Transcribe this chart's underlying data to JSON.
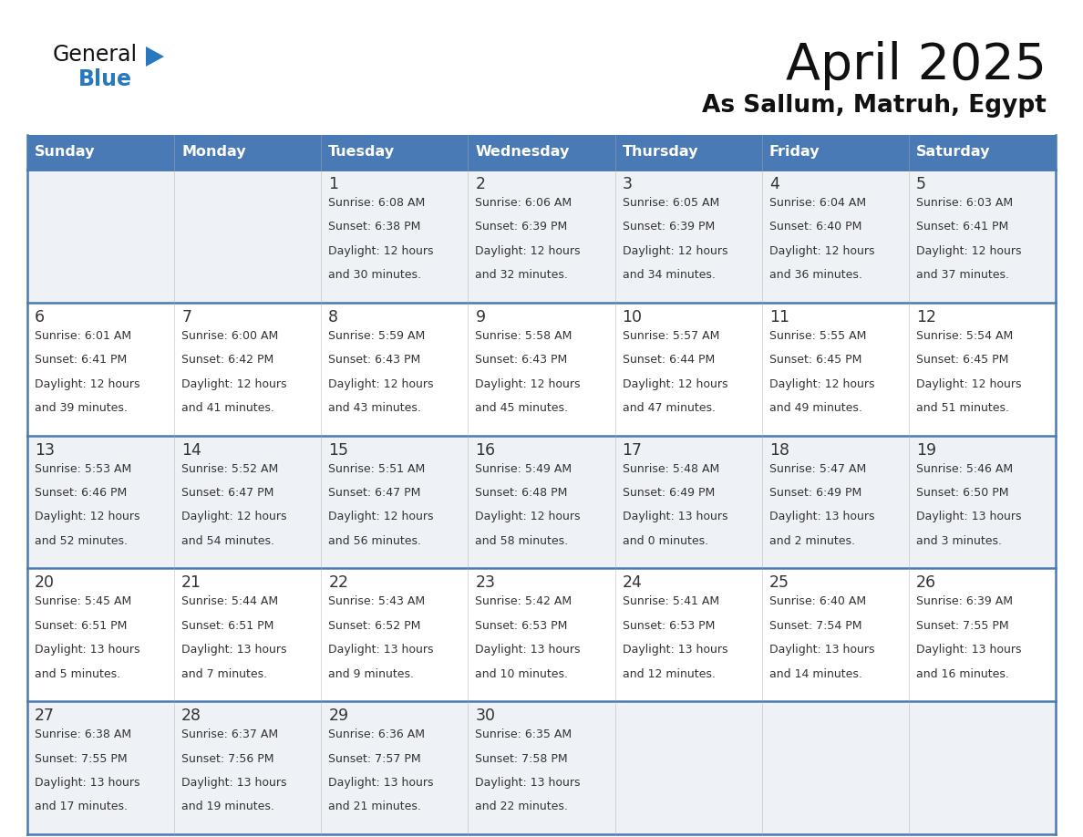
{
  "title": "April 2025",
  "subtitle": "As Sallum, Matruh, Egypt",
  "days_of_week": [
    "Sunday",
    "Monday",
    "Tuesday",
    "Wednesday",
    "Thursday",
    "Friday",
    "Saturday"
  ],
  "header_bg": "#4a7ab5",
  "header_text_color": "#ffffff",
  "cell_bg_odd": "#eef2f7",
  "cell_bg_even": "#ffffff",
  "cell_border_color": "#4a7ab5",
  "text_color": "#333333",
  "title_color": "#111111",
  "logo_general_color": "#111111",
  "logo_blue_color": "#2878c0",
  "logo_triangle_color": "#2878c0",
  "weeks": [
    [
      {
        "day": null,
        "info": null
      },
      {
        "day": null,
        "info": null
      },
      {
        "day": 1,
        "info": "Sunrise: 6:08 AM\nSunset: 6:38 PM\nDaylight: 12 hours\nand 30 minutes."
      },
      {
        "day": 2,
        "info": "Sunrise: 6:06 AM\nSunset: 6:39 PM\nDaylight: 12 hours\nand 32 minutes."
      },
      {
        "day": 3,
        "info": "Sunrise: 6:05 AM\nSunset: 6:39 PM\nDaylight: 12 hours\nand 34 minutes."
      },
      {
        "day": 4,
        "info": "Sunrise: 6:04 AM\nSunset: 6:40 PM\nDaylight: 12 hours\nand 36 minutes."
      },
      {
        "day": 5,
        "info": "Sunrise: 6:03 AM\nSunset: 6:41 PM\nDaylight: 12 hours\nand 37 minutes."
      }
    ],
    [
      {
        "day": 6,
        "info": "Sunrise: 6:01 AM\nSunset: 6:41 PM\nDaylight: 12 hours\nand 39 minutes."
      },
      {
        "day": 7,
        "info": "Sunrise: 6:00 AM\nSunset: 6:42 PM\nDaylight: 12 hours\nand 41 minutes."
      },
      {
        "day": 8,
        "info": "Sunrise: 5:59 AM\nSunset: 6:43 PM\nDaylight: 12 hours\nand 43 minutes."
      },
      {
        "day": 9,
        "info": "Sunrise: 5:58 AM\nSunset: 6:43 PM\nDaylight: 12 hours\nand 45 minutes."
      },
      {
        "day": 10,
        "info": "Sunrise: 5:57 AM\nSunset: 6:44 PM\nDaylight: 12 hours\nand 47 minutes."
      },
      {
        "day": 11,
        "info": "Sunrise: 5:55 AM\nSunset: 6:45 PM\nDaylight: 12 hours\nand 49 minutes."
      },
      {
        "day": 12,
        "info": "Sunrise: 5:54 AM\nSunset: 6:45 PM\nDaylight: 12 hours\nand 51 minutes."
      }
    ],
    [
      {
        "day": 13,
        "info": "Sunrise: 5:53 AM\nSunset: 6:46 PM\nDaylight: 12 hours\nand 52 minutes."
      },
      {
        "day": 14,
        "info": "Sunrise: 5:52 AM\nSunset: 6:47 PM\nDaylight: 12 hours\nand 54 minutes."
      },
      {
        "day": 15,
        "info": "Sunrise: 5:51 AM\nSunset: 6:47 PM\nDaylight: 12 hours\nand 56 minutes."
      },
      {
        "day": 16,
        "info": "Sunrise: 5:49 AM\nSunset: 6:48 PM\nDaylight: 12 hours\nand 58 minutes."
      },
      {
        "day": 17,
        "info": "Sunrise: 5:48 AM\nSunset: 6:49 PM\nDaylight: 13 hours\nand 0 minutes."
      },
      {
        "day": 18,
        "info": "Sunrise: 5:47 AM\nSunset: 6:49 PM\nDaylight: 13 hours\nand 2 minutes."
      },
      {
        "day": 19,
        "info": "Sunrise: 5:46 AM\nSunset: 6:50 PM\nDaylight: 13 hours\nand 3 minutes."
      }
    ],
    [
      {
        "day": 20,
        "info": "Sunrise: 5:45 AM\nSunset: 6:51 PM\nDaylight: 13 hours\nand 5 minutes."
      },
      {
        "day": 21,
        "info": "Sunrise: 5:44 AM\nSunset: 6:51 PM\nDaylight: 13 hours\nand 7 minutes."
      },
      {
        "day": 22,
        "info": "Sunrise: 5:43 AM\nSunset: 6:52 PM\nDaylight: 13 hours\nand 9 minutes."
      },
      {
        "day": 23,
        "info": "Sunrise: 5:42 AM\nSunset: 6:53 PM\nDaylight: 13 hours\nand 10 minutes."
      },
      {
        "day": 24,
        "info": "Sunrise: 5:41 AM\nSunset: 6:53 PM\nDaylight: 13 hours\nand 12 minutes."
      },
      {
        "day": 25,
        "info": "Sunrise: 6:40 AM\nSunset: 7:54 PM\nDaylight: 13 hours\nand 14 minutes."
      },
      {
        "day": 26,
        "info": "Sunrise: 6:39 AM\nSunset: 7:55 PM\nDaylight: 13 hours\nand 16 minutes."
      }
    ],
    [
      {
        "day": 27,
        "info": "Sunrise: 6:38 AM\nSunset: 7:55 PM\nDaylight: 13 hours\nand 17 minutes."
      },
      {
        "day": 28,
        "info": "Sunrise: 6:37 AM\nSunset: 7:56 PM\nDaylight: 13 hours\nand 19 minutes."
      },
      {
        "day": 29,
        "info": "Sunrise: 6:36 AM\nSunset: 7:57 PM\nDaylight: 13 hours\nand 21 minutes."
      },
      {
        "day": 30,
        "info": "Sunrise: 6:35 AM\nSunset: 7:58 PM\nDaylight: 13 hours\nand 22 minutes."
      },
      {
        "day": null,
        "info": null
      },
      {
        "day": null,
        "info": null
      },
      {
        "day": null,
        "info": null
      }
    ]
  ]
}
